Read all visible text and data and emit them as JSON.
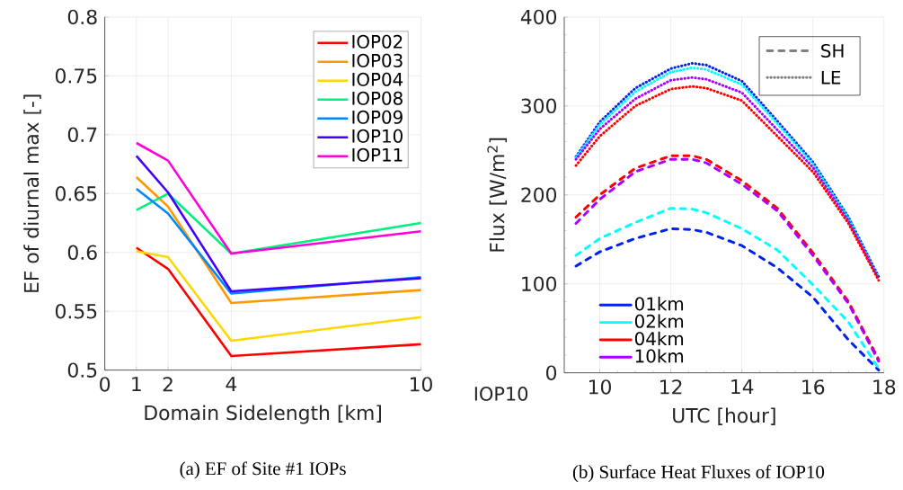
{
  "chart_data": [
    {
      "type": "line",
      "xlabel": "Domain Sidelength [km]",
      "ylabel": "EF of diurnal max [-]",
      "annotations": [
        "(a) EF of Site #1 IOPs"
      ],
      "x": [
        1,
        2,
        4,
        10
      ],
      "xlim": [
        0,
        10
      ],
      "xticks": [
        0,
        1,
        2,
        4,
        10
      ],
      "ylim": [
        0.5,
        0.8
      ],
      "yticks": [
        0.5,
        0.55,
        0.6,
        0.65,
        0.7,
        0.75,
        0.8
      ],
      "grid": true,
      "legend": "top right",
      "marker": "none",
      "line_style": "solid",
      "series": [
        {
          "name": "IOP02",
          "color": "#ff0000",
          "values": [
            0.604,
            0.586,
            0.512,
            0.522
          ]
        },
        {
          "name": "IOP03",
          "color": "#ff9900",
          "values": [
            0.664,
            0.639,
            0.557,
            0.568
          ]
        },
        {
          "name": "IOP04",
          "color": "#ffd700",
          "values": [
            0.601,
            0.596,
            0.525,
            0.545
          ]
        },
        {
          "name": "IOP08",
          "color": "#00f080",
          "values": [
            0.636,
            0.65,
            0.599,
            0.625
          ]
        },
        {
          "name": "IOP09",
          "color": "#0088ff",
          "values": [
            0.654,
            0.633,
            0.565,
            0.579
          ]
        },
        {
          "name": "IOP10",
          "color": "#4400ff",
          "values": [
            0.682,
            0.651,
            0.567,
            0.578
          ]
        },
        {
          "name": "IOP11",
          "color": "#ff00dd",
          "values": [
            0.693,
            0.678,
            0.599,
            0.618
          ]
        }
      ]
    },
    {
      "type": "line",
      "xlabel": "UTC [hour]",
      "ylabel": "Flux [W/m$^{2}$]",
      "annotations": [
        "SH",
        "LE",
        "IOP10",
        "(b) Surface Heat Fluxes of IOP10"
      ],
      "x": [
        9.33,
        10,
        11,
        12,
        12.6,
        13,
        14,
        15,
        16,
        17,
        17.85
      ],
      "xlim": [
        9,
        18
      ],
      "xticks": [
        10,
        12,
        14,
        16,
        18
      ],
      "ylim": [
        0,
        400
      ],
      "yticks": [
        0,
        100,
        200,
        300,
        400
      ],
      "grid": true,
      "legend": "bottom left",
      "marker": "none",
      "series": [
        {
          "name": "01km",
          "color": "#0022ee",
          "line_style": "dashed",
          "values": [
            120,
            136,
            151,
            162,
            161,
            158,
            143,
            118,
            85,
            37,
            3
          ]
        },
        {
          "name": "02km",
          "color": "#00ffff",
          "line_style": "dashed",
          "values": [
            132,
            151,
            169,
            185,
            184,
            180,
            162,
            138,
            99,
            57,
            5
          ]
        },
        {
          "name": "04km",
          "color": "#ff0000",
          "line_style": "dashed",
          "values": [
            175,
            200,
            230,
            244,
            244,
            240,
            216,
            185,
            135,
            80,
            15
          ]
        },
        {
          "name": "10km",
          "color": "#aa00ff",
          "line_style": "dashed",
          "values": [
            168,
            195,
            226,
            240,
            240,
            236,
            212,
            182,
            132,
            78,
            13
          ]
        },
        {
          "color": "#0022ee",
          "line_style": "dotted",
          "values": [
            243,
            282,
            320,
            342,
            348,
            346,
            328,
            283,
            237,
            175,
            108
          ]
        },
        {
          "color": "#00ffff",
          "line_style": "dotted",
          "values": [
            242,
            279,
            316,
            338,
            343,
            341,
            324,
            280,
            235,
            174,
            107
          ]
        },
        {
          "color": "#aa00ff",
          "line_style": "dotted",
          "values": [
            240,
            274,
            308,
            329,
            332,
            330,
            315,
            273,
            231,
            171,
            106
          ]
        },
        {
          "color": "#ff0000",
          "line_style": "dotted",
          "values": [
            233,
            266,
            300,
            319,
            322,
            320,
            306,
            266,
            226,
            168,
            104
          ]
        }
      ]
    }
  ]
}
